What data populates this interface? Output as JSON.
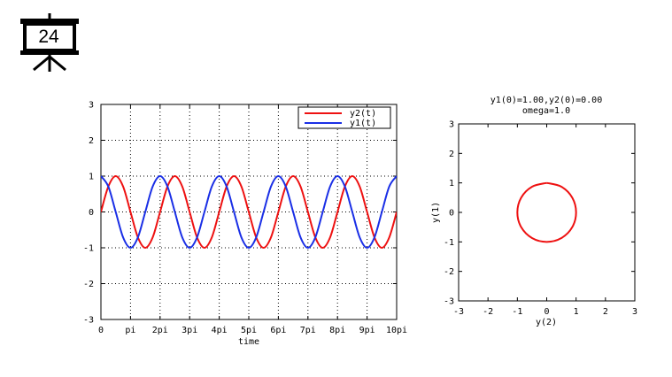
{
  "slide": {
    "number": "24",
    "icon": "presentation-board-icon"
  },
  "chart_data": [
    {
      "type": "line",
      "title": "",
      "xlabel": "time",
      "ylabel": "",
      "xlim": [
        0,
        31.4159
      ],
      "ylim": [
        -3,
        3
      ],
      "grid": true,
      "legend_placement": "top-right",
      "x_ticks": [
        {
          "value": 0,
          "label": "0"
        },
        {
          "value": 3.14159,
          "label": "pi"
        },
        {
          "value": 6.28319,
          "label": "2pi"
        },
        {
          "value": 9.42478,
          "label": "3pi"
        },
        {
          "value": 12.56637,
          "label": "4pi"
        },
        {
          "value": 15.70796,
          "label": "5pi"
        },
        {
          "value": 18.84956,
          "label": "6pi"
        },
        {
          "value": 21.99115,
          "label": "7pi"
        },
        {
          "value": 25.13274,
          "label": "8pi"
        },
        {
          "value": 28.27433,
          "label": "9pi"
        },
        {
          "value": 31.41593,
          "label": "10pi"
        }
      ],
      "y_ticks": [
        {
          "value": 3,
          "label": "3"
        },
        {
          "value": 2,
          "label": "2"
        },
        {
          "value": 1,
          "label": "1"
        },
        {
          "value": 0,
          "label": "0"
        },
        {
          "value": -1,
          "label": "-1"
        },
        {
          "value": -2,
          "label": "-2"
        },
        {
          "value": -3,
          "label": "-3"
        }
      ],
      "series": [
        {
          "name": "y2(t)",
          "color": "#ee1111",
          "x": [
            0,
            0.785,
            1.571,
            2.356,
            3.142,
            3.927,
            4.712,
            5.498,
            6.283,
            7.069,
            7.854,
            8.639,
            9.425,
            10.21,
            10.996,
            11.781,
            12.566,
            13.352,
            14.137,
            14.923,
            15.708,
            16.493,
            17.279,
            18.064,
            18.85,
            19.635,
            20.42,
            21.206,
            21.991,
            22.777,
            23.562,
            24.347,
            25.133,
            25.918,
            26.704,
            27.489,
            28.274,
            29.06,
            29.845,
            30.631,
            31.416
          ],
          "values": [
            0,
            0.71,
            1.0,
            0.71,
            0,
            -0.71,
            -1.0,
            -0.71,
            0,
            0.71,
            1.0,
            0.71,
            0,
            -0.71,
            -1.0,
            -0.71,
            0,
            0.71,
            1.0,
            0.71,
            0,
            -0.71,
            -1.0,
            -0.71,
            0,
            0.71,
            1.0,
            0.71,
            0,
            -0.71,
            -1.0,
            -0.71,
            0,
            0.71,
            1.0,
            0.71,
            0,
            -0.71,
            -1.0,
            -0.71,
            0
          ]
        },
        {
          "name": "y1(t)",
          "color": "#1a2fe6",
          "x": [
            0,
            0.785,
            1.571,
            2.356,
            3.142,
            3.927,
            4.712,
            5.498,
            6.283,
            7.069,
            7.854,
            8.639,
            9.425,
            10.21,
            10.996,
            11.781,
            12.566,
            13.352,
            14.137,
            14.923,
            15.708,
            16.493,
            17.279,
            18.064,
            18.85,
            19.635,
            20.42,
            21.206,
            21.991,
            22.777,
            23.562,
            24.347,
            25.133,
            25.918,
            26.704,
            27.489,
            28.274,
            29.06,
            29.845,
            30.631,
            31.416
          ],
          "values": [
            1.0,
            0.71,
            0,
            -0.71,
            -1.0,
            -0.71,
            0,
            0.71,
            1.0,
            0.71,
            0,
            -0.71,
            -1.0,
            -0.71,
            0,
            0.71,
            1.0,
            0.71,
            0,
            -0.71,
            -1.0,
            -0.71,
            0,
            0.71,
            1.0,
            0.71,
            0,
            -0.71,
            -1.0,
            -0.71,
            0,
            0.71,
            1.0,
            0.71,
            0,
            -0.71,
            -1.0,
            -0.71,
            0,
            0.71,
            1.0
          ]
        }
      ]
    },
    {
      "type": "line",
      "title": "y1(0)=1.00,y2(0)=0.00",
      "subtitle": "omega=1.0",
      "xlabel": "y(2)",
      "ylabel": "y(1)",
      "xlim": [
        -3,
        3
      ],
      "ylim": [
        -3,
        3
      ],
      "grid": false,
      "x_ticks": [
        {
          "value": -3,
          "label": "-3"
        },
        {
          "value": -2,
          "label": "-2"
        },
        {
          "value": -1,
          "label": "-1"
        },
        {
          "value": 0,
          "label": "0"
        },
        {
          "value": 1,
          "label": "1"
        },
        {
          "value": 2,
          "label": "2"
        },
        {
          "value": 3,
          "label": "3"
        }
      ],
      "y_ticks": [
        {
          "value": 3,
          "label": "3"
        },
        {
          "value": 2,
          "label": "2"
        },
        {
          "value": 1,
          "label": "1"
        },
        {
          "value": 0,
          "label": "0"
        },
        {
          "value": -1,
          "label": "-1"
        },
        {
          "value": -2,
          "label": "-2"
        },
        {
          "value": -3,
          "label": "-3"
        }
      ],
      "series": [
        {
          "color": "#ee1111",
          "x": [
            0,
            0.5,
            0.87,
            1.0,
            0.87,
            0.5,
            0,
            -0.5,
            -0.87,
            -1.0,
            -0.87,
            -0.5,
            0
          ],
          "values": [
            1.0,
            0.87,
            0.5,
            0,
            -0.5,
            -0.87,
            -1.0,
            -0.87,
            -0.5,
            0,
            0.5,
            0.87,
            1.0
          ]
        }
      ]
    }
  ]
}
